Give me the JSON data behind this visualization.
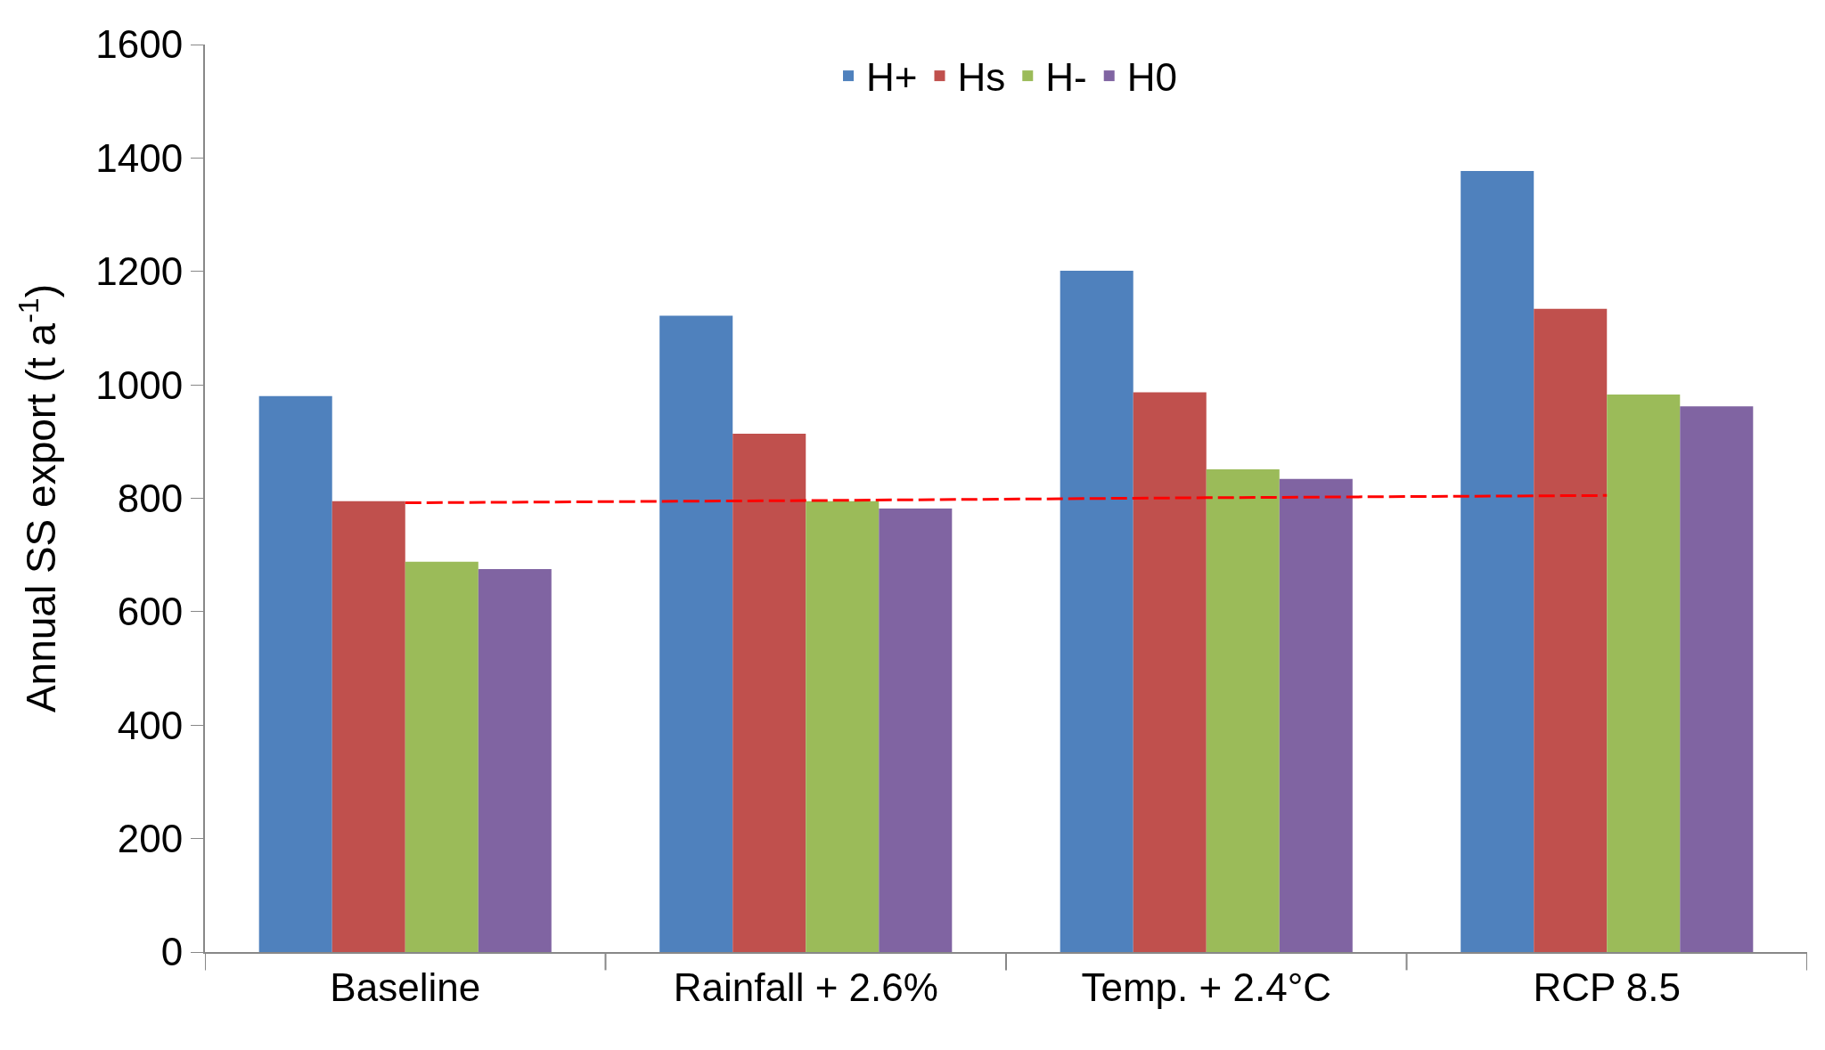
{
  "chart_data": {
    "type": "bar",
    "ylabel": "Annual SS export (t a$^{-1}$)",
    "categories": [
      "Baseline",
      "Rainfall + 2.6%",
      "Temp. + 2.4°C",
      "RCP 8.5"
    ],
    "series": [
      {
        "name": "H+",
        "color": "#4f81bd",
        "values": [
          980,
          1122,
          1201,
          1377
        ]
      },
      {
        "name": "Hs",
        "color": "#c0504d",
        "values": [
          795,
          914,
          987,
          1134
        ]
      },
      {
        "name": "H-",
        "color": "#9bbb59",
        "values": [
          688,
          795,
          851,
          983
        ]
      },
      {
        "name": "H0",
        "color": "#8064a2",
        "values": [
          675,
          782,
          834,
          962
        ]
      },
      {
        "type": "line",
        "color": "#ff0000",
        "line_style": "dashed",
        "marker": "none",
        "values": [
          792,
          796,
          801,
          805
        ]
      }
    ],
    "ylim": [
      0,
      1600
    ],
    "yticks": [
      0,
      200,
      400,
      600,
      800,
      1000,
      1200,
      1400,
      1600
    ],
    "grid": false,
    "legend": "top"
  }
}
